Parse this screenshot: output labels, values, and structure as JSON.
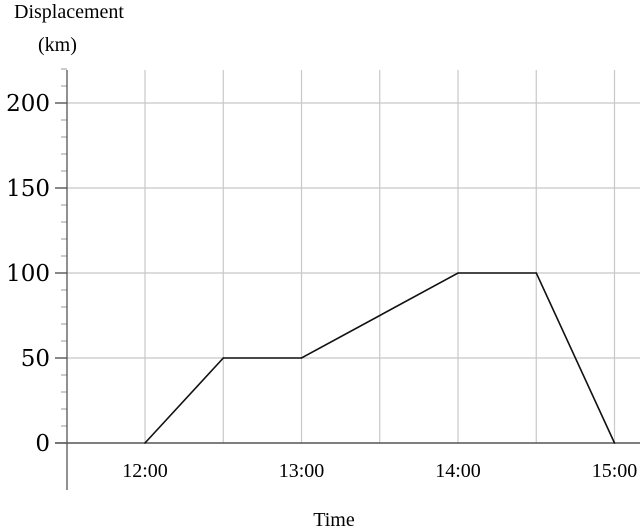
{
  "chart_data": {
    "type": "line",
    "title": "",
    "ylabel": [
      "Displacement",
      "(km)"
    ],
    "xlabel": "Time",
    "x_ticks": [
      "12:00",
      "13:00",
      "14:00",
      "15:00"
    ],
    "y_ticks": [
      "0",
      "50",
      "100",
      "150",
      "200"
    ],
    "xlim": [
      "11:30",
      "15:10"
    ],
    "ylim": [
      0,
      200
    ],
    "grid": true,
    "series": [
      {
        "x": [
          "12:00",
          "12:30",
          "13:00",
          "14:00",
          "14:30",
          "15:00"
        ],
        "y": [
          0,
          50,
          50,
          100,
          100,
          0
        ]
      }
    ]
  }
}
